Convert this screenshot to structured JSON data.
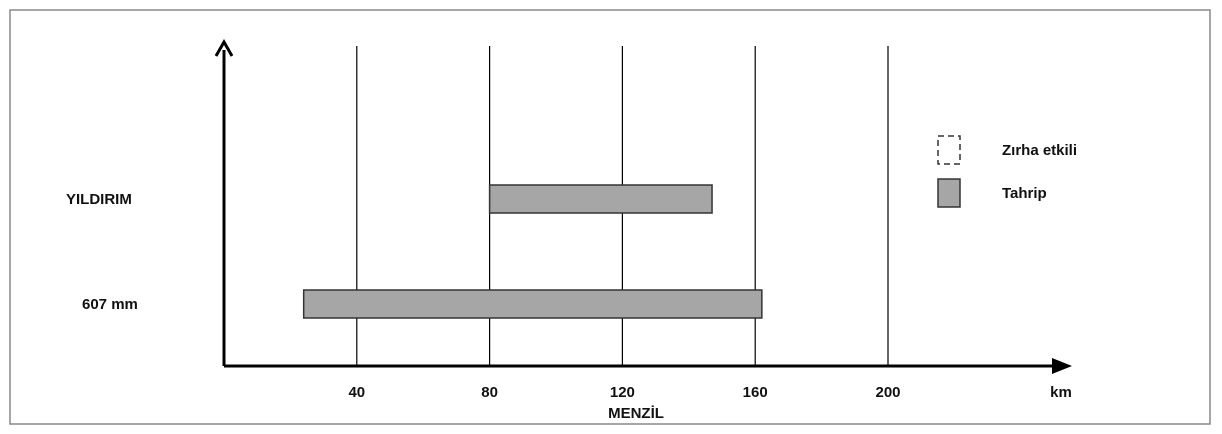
{
  "chart_data": {
    "type": "bar",
    "orientation": "horizontal-range",
    "title": "",
    "xlabel": "MENZİL",
    "xunit": "km",
    "xticks": [
      40,
      80,
      120,
      160,
      200
    ],
    "categories": [
      "YILDIRIM",
      "607 mm"
    ],
    "series": [
      {
        "name": "Tahrip",
        "style": "filled",
        "color": "#a6a6a6",
        "ranges": [
          [
            80,
            147
          ],
          [
            24,
            162
          ]
        ]
      },
      {
        "name": "Zırha etkili",
        "style": "dashed-outline",
        "color": "#ffffff",
        "ranges": []
      }
    ],
    "grid": "vertical",
    "legend_position": "right"
  }
}
